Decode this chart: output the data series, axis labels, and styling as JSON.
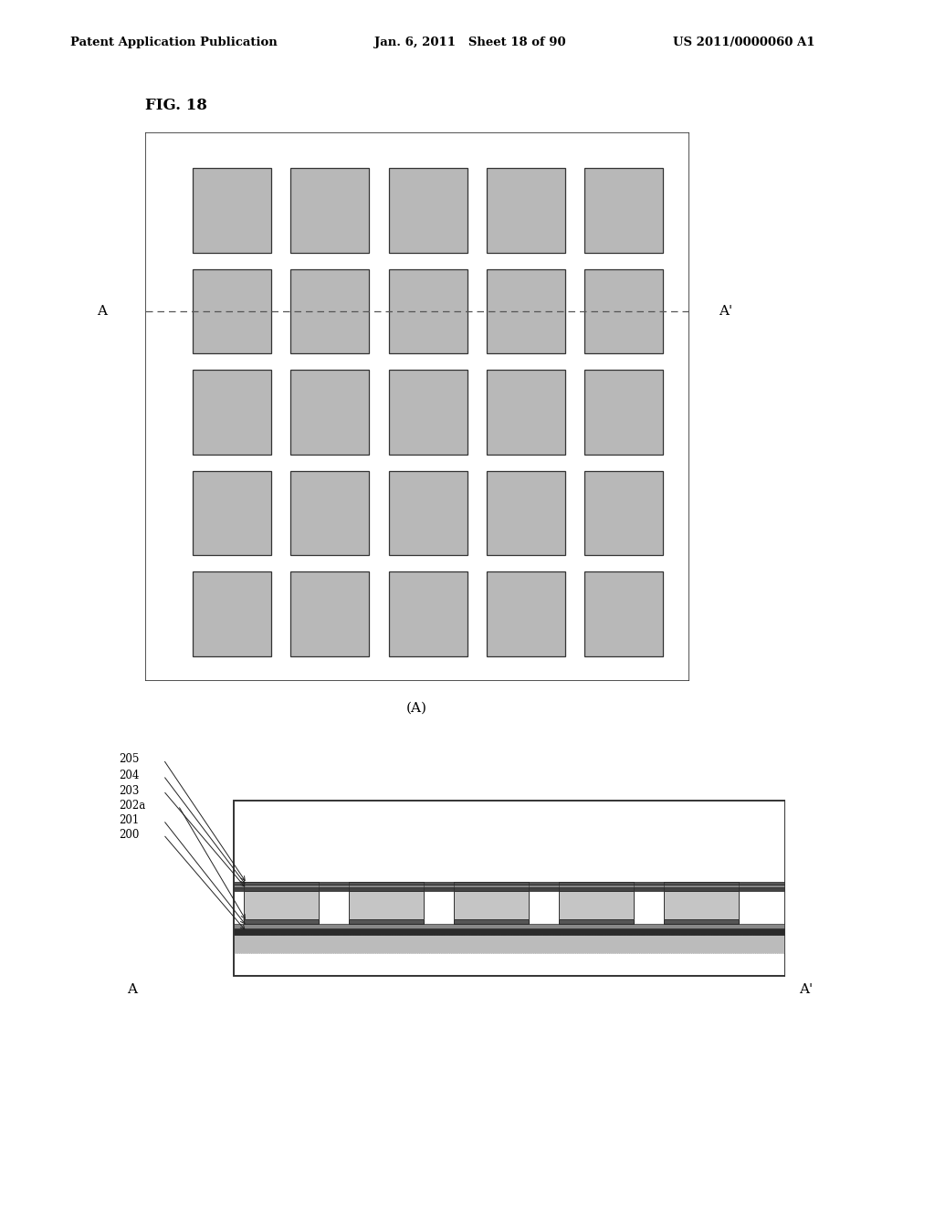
{
  "header_left": "Patent Application Publication",
  "header_mid": "Jan. 6, 2011   Sheet 18 of 90",
  "header_right": "US 2011/0000060 A1",
  "fig_label": "FIG. 18",
  "sub_label_A": "(A)",
  "grid_rows": 5,
  "grid_cols": 5,
  "box_color": "#b8b8b8",
  "box_edge_color": "#333333",
  "background_color": "#ffffff",
  "dashed_line_color": "#555555",
  "layer_labels": [
    "205",
    "204",
    "203",
    "202a",
    "201",
    "200"
  ],
  "cs_label_left": "A",
  "cs_label_right": "A'",
  "top_label_left": "A",
  "top_label_right": "A'",
  "pad_color": "#c8c8c8",
  "layer_top_color": "#888888",
  "layer_dark_color": "#444444",
  "substrate_color": "#d8d8d8",
  "layer_base_dark": "#555555",
  "layer_base_mid": "#aaaaaa"
}
